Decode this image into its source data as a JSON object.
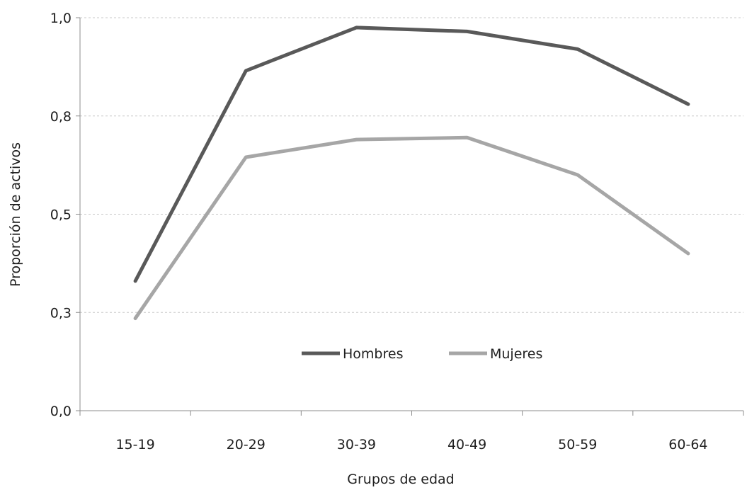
{
  "chart_data": {
    "type": "line",
    "title": "",
    "xlabel": "Grupos de edad",
    "ylabel": "Proporción de activos",
    "categories": [
      "15-19",
      "20-29",
      "30-39",
      "40-49",
      "50-59",
      "60-64"
    ],
    "y_tick_labels": [
      "0,0",
      "0,3",
      "0,5",
      "0,8",
      "1,0"
    ],
    "y_tick_values": [
      0,
      0.25,
      0.5,
      0.75,
      1.0
    ],
    "ylim": [
      0,
      1.0
    ],
    "grid": {
      "horizontal": true,
      "style": "dashed"
    },
    "legend": {
      "placement": "inside-center"
    },
    "series": [
      {
        "name": "Hombres",
        "color": "#595959",
        "values": [
          0.33,
          0.865,
          0.975,
          0.965,
          0.92,
          0.78
        ]
      },
      {
        "name": "Mujeres",
        "color": "#a6a6a6",
        "values": [
          0.235,
          0.645,
          0.69,
          0.695,
          0.6,
          0.4
        ]
      }
    ]
  }
}
